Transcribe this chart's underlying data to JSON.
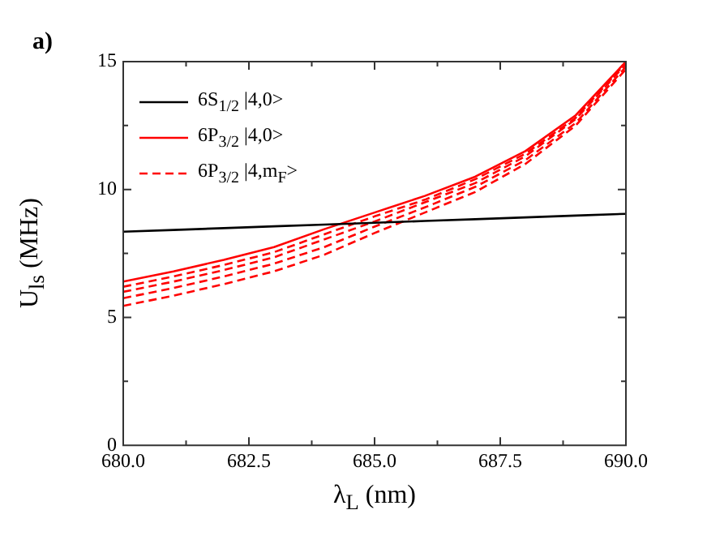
{
  "chart_data": {
    "type": "line",
    "annotations": [
      "a)"
    ],
    "xlabel": "λ$_{L}$ (nm)",
    "ylabel": "U$_{ls}$ (MHz)",
    "x": [
      680,
      681,
      682,
      683,
      684,
      685,
      686,
      687,
      688,
      689,
      690
    ],
    "xlim": [
      680,
      690
    ],
    "xticks": [
      {
        "value": 680,
        "label": "680.0"
      },
      {
        "value": 681.25,
        "label": null
      },
      {
        "value": 682.5,
        "label": "682.5"
      },
      {
        "value": 683.75,
        "label": null
      },
      {
        "value": 685,
        "label": "685.0"
      },
      {
        "value": 686.25,
        "label": null
      },
      {
        "value": 687.5,
        "label": "687.5"
      },
      {
        "value": 688.75,
        "label": null
      },
      {
        "value": 690,
        "label": "690.0"
      }
    ],
    "ylim": [
      0,
      15
    ],
    "yticks": [
      0,
      {
        "value": 2.5,
        "label": null
      },
      5,
      {
        "value": 7.5,
        "label": null
      },
      10,
      {
        "value": 12.5,
        "label": null
      },
      15
    ],
    "grid": false,
    "legend": "top left",
    "marker": "none",
    "series": [
      {
        "name": "6S$_{1/2}$ |4,0>",
        "color": "#000000",
        "line_style": "solid",
        "values": [
          8.35,
          8.42,
          8.49,
          8.56,
          8.63,
          8.7,
          8.77,
          8.84,
          8.91,
          8.98,
          9.05
        ]
      },
      {
        "name": "6P$_{3/2}$ |4,0>",
        "color": "#ff0000",
        "line_style": "solid",
        "values": [
          6.4,
          6.8,
          7.25,
          7.75,
          8.45,
          9.1,
          9.75,
          10.5,
          11.5,
          12.9,
          15.0
        ]
      },
      {
        "name": "6P$_{3/2}$ |4,m$_{F}$>",
        "color": "#ff0000",
        "line_style": "dashed",
        "values": [
          6.2,
          6.6,
          7.05,
          7.55,
          8.25,
          8.95,
          9.6,
          10.4,
          11.4,
          12.8,
          14.95
        ]
      },
      {
        "color": "#ff0000",
        "line_style": "dashed",
        "values": [
          6.0,
          6.4,
          6.85,
          7.35,
          8.05,
          8.75,
          9.5,
          10.25,
          11.3,
          12.75,
          14.9
        ]
      },
      {
        "color": "#ff0000",
        "line_style": "dashed",
        "values": [
          5.75,
          6.15,
          6.6,
          7.1,
          7.75,
          8.55,
          9.3,
          10.1,
          11.15,
          12.6,
          14.8
        ]
      },
      {
        "color": "#ff0000",
        "line_style": "dashed",
        "values": [
          5.45,
          5.85,
          6.3,
          6.8,
          7.45,
          8.3,
          9.1,
          9.9,
          11.0,
          12.5,
          14.7
        ]
      }
    ]
  }
}
